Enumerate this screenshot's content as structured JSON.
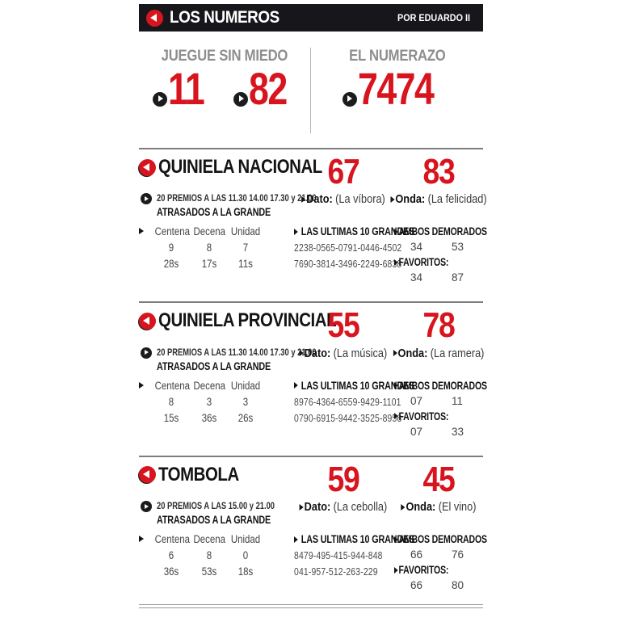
{
  "colors": {
    "accent_red": "#d8151e",
    "bar_black": "#17171b",
    "muted_gray": "#8e8e8e"
  },
  "icons": {
    "header_marker": "play-left-circle-icon",
    "section_marker": "play-left-circle-icon",
    "bullet": "play-right-circle-icon",
    "pointer": "right-triangle-icon"
  },
  "header": {
    "title": "LOS NUMEROS",
    "byline": "POR EDUARDO II"
  },
  "featured": {
    "left": {
      "label": "JUEGUE SIN MIEDO",
      "numbers": [
        "11",
        "82"
      ]
    },
    "right": {
      "label": "EL NUMERAZO",
      "numbers": [
        "7474"
      ]
    }
  },
  "sections": [
    {
      "title": "QUINIELA NACIONAL",
      "schedule_line1": "20 PREMIOS A LAS 11.30 14.00 17.30 y 21.00",
      "schedule_line2": "ATRASADOS A LA GRANDE",
      "dato": {
        "number": "67",
        "label": "Dato:",
        "value": "(La víbora)"
      },
      "onda": {
        "number": "83",
        "label": "Onda:",
        "value": "(La felicidad)"
      },
      "table": {
        "headers": [
          "Centena",
          "Decena",
          "Unidad"
        ],
        "rows": [
          [
            "9",
            "8",
            "7"
          ],
          [
            "28s",
            "17s",
            "11s"
          ]
        ]
      },
      "grandes": {
        "label": "LAS ULTIMAS 10 GRANDES",
        "rows": [
          "2238-0565-0791-0446-4502",
          "7690-3814-3496-2249-6838"
        ]
      },
      "ambos": {
        "label": "AMBOS DEMORADOS",
        "values": [
          "34",
          "53"
        ]
      },
      "favoritos": {
        "label": "FAVORITOS:",
        "values": [
          "34",
          "87"
        ]
      }
    },
    {
      "title": "QUINIELA PROVINCIAL",
      "schedule_line1": "20 PREMIOS A LAS 11.30 14.00 17.30 y 21.00",
      "schedule_line2": "ATRASADOS A LA GRANDE",
      "dato": {
        "number": "55",
        "label": "Dato:",
        "value": "(La música)"
      },
      "onda": {
        "number": "78",
        "label": "Onda:",
        "value": "(La ramera)"
      },
      "table": {
        "headers": [
          "Centena",
          "Decena",
          "Unidad"
        ],
        "rows": [
          [
            "8",
            "3",
            "3"
          ],
          [
            "15s",
            "36s",
            "26s"
          ]
        ]
      },
      "grandes": {
        "label": "LAS ULTIMAS 10 GRANDES",
        "rows": [
          "8976-4364-6559-9429-1101",
          "0790-6915-9442-3525-8956"
        ]
      },
      "ambos": {
        "label": "AMBOS DEMORADOS",
        "values": [
          "07",
          "11"
        ]
      },
      "favoritos": {
        "label": "FAVORITOS:",
        "values": [
          "07",
          "33"
        ]
      }
    },
    {
      "title": "TOMBOLA",
      "schedule_line1": "20 PREMIOS A LAS 15.00 y 21.00",
      "schedule_line2": "ATRASADOS A LA GRANDE",
      "dato": {
        "number": "59",
        "label": "Dato:",
        "value": "(La cebolla)"
      },
      "onda": {
        "number": "45",
        "label": "Onda:",
        "value": "(El vino)"
      },
      "table": {
        "headers": [
          "Centena",
          "Decena",
          "Unidad"
        ],
        "rows": [
          [
            "6",
            "8",
            "0"
          ],
          [
            "36s",
            "53s",
            "18s"
          ]
        ]
      },
      "grandes": {
        "label": "LAS ULTIMAS 10 GRANDES",
        "rows": [
          "8479-495-415-944-848",
          "041-957-512-263-229"
        ]
      },
      "ambos": {
        "label": "AMBOS DEMORADOS",
        "values": [
          "66",
          "76"
        ]
      },
      "favoritos": {
        "label": "FAVORITOS:",
        "values": [
          "66",
          "80"
        ]
      }
    }
  ]
}
